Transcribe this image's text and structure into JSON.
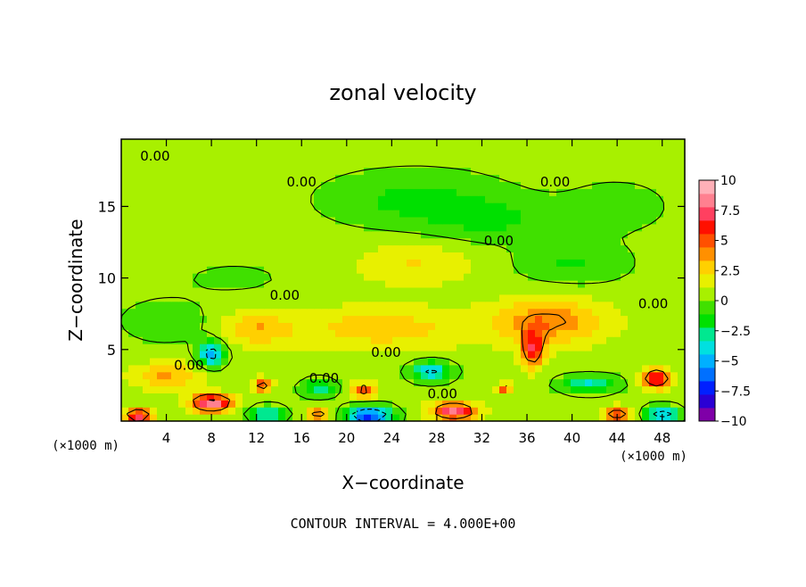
{
  "chart_data": {
    "type": "heatmap",
    "title": "zonal velocity",
    "xlabel": "X−coordinate",
    "ylabel": "Z−coordinate",
    "x_unit": "(×1000 m)",
    "xlim": [
      0,
      50
    ],
    "ylim": [
      0,
      19.7
    ],
    "x_ticks": [
      4,
      8,
      12,
      16,
      20,
      24,
      28,
      32,
      36,
      40,
      44,
      48
    ],
    "x_tick_labels": [
      "4",
      "8",
      "12",
      "16",
      "20",
      "24",
      "28",
      "32",
      "36",
      "40",
      "44",
      "48"
    ],
    "y_ticks": [
      5,
      10,
      15
    ],
    "y_tick_labels": [
      "5",
      "10",
      "15"
    ],
    "colorbar": {
      "min": -10,
      "max": 10,
      "ticks": [
        10,
        7.5,
        5,
        2.5,
        0,
        -2.5,
        -5,
        -7.5,
        -10
      ],
      "tick_labels": [
        "10",
        "7.5",
        "5",
        "2.5",
        "0",
        "−2.5",
        "−5",
        "−7.5",
        "−10"
      ],
      "colors": [
        "#7f00a8",
        "#2a00d4",
        "#0020ff",
        "#0070ff",
        "#00b0ff",
        "#00e0e0",
        "#00e890",
        "#00e000",
        "#40e000",
        "#a8f000",
        "#e8f000",
        "#ffd000",
        "#ff9000",
        "#ff5000",
        "#ff1000",
        "#ff4060",
        "#ff8090",
        "#ffb0b8"
      ]
    },
    "background_value": 0.5,
    "features": [
      {
        "x": 4,
        "z": 16,
        "sx": 6,
        "sz": 2.2,
        "value": 0.6
      },
      {
        "x": 26,
        "z": 15.5,
        "sx": 8,
        "sz": 2.0,
        "value": -1.9
      },
      {
        "x": 33,
        "z": 14,
        "sx": 6,
        "sz": 1.5,
        "value": -1.5
      },
      {
        "x": 40,
        "z": 11,
        "sx": 5,
        "sz": 1.5,
        "value": -1.7
      },
      {
        "x": 26,
        "z": 11,
        "sx": 5,
        "sz": 1.5,
        "value": 1.8
      },
      {
        "x": 44,
        "z": 15,
        "sx": 5,
        "sz": 2.0,
        "value": -1.0
      },
      {
        "x": 10,
        "z": 10,
        "sx": 5,
        "sz": 1.2,
        "value": -0.8
      },
      {
        "x": 4,
        "z": 7,
        "sx": 4,
        "sz": 1.5,
        "value": -1.4
      },
      {
        "x": 38,
        "z": 7,
        "sx": 5,
        "sz": 1.6,
        "value": 3.8
      },
      {
        "x": 23,
        "z": 6.5,
        "sx": 8,
        "sz": 1.5,
        "value": 2.4
      },
      {
        "x": 12,
        "z": 6.5,
        "sx": 3,
        "sz": 1.2,
        "value": 2.6
      },
      {
        "x": 8,
        "z": 4.7,
        "sx": 1.2,
        "sz": 0.9,
        "value": -5.6
      },
      {
        "x": 27.5,
        "z": 3.5,
        "sx": 1.8,
        "sz": 0.7,
        "value": -5.0
      },
      {
        "x": 17.5,
        "z": 2.3,
        "sx": 1.5,
        "sz": 0.6,
        "value": -3.5
      },
      {
        "x": 41.5,
        "z": 2.6,
        "sx": 2.5,
        "sz": 0.6,
        "value": -4.0
      },
      {
        "x": 4,
        "z": 3.2,
        "sx": 3,
        "sz": 0.9,
        "value": 3.0
      },
      {
        "x": 8,
        "z": 1.3,
        "sx": 1.8,
        "sz": 0.6,
        "value": 8.5
      },
      {
        "x": 29.5,
        "z": 0.7,
        "sx": 2.0,
        "sz": 0.6,
        "value": 7.5
      },
      {
        "x": 36.5,
        "z": 5.0,
        "sx": 1.0,
        "sz": 1.3,
        "value": 5.5
      },
      {
        "x": 47.5,
        "z": 3.0,
        "sx": 1.3,
        "sz": 0.7,
        "value": 6.5
      },
      {
        "x": 1.5,
        "z": 0.4,
        "sx": 1.2,
        "sz": 0.5,
        "value": 7.0
      },
      {
        "x": 22,
        "z": 0.4,
        "sx": 2.0,
        "sz": 0.6,
        "value": -8.0
      },
      {
        "x": 13,
        "z": 0.5,
        "sx": 1.5,
        "sz": 0.5,
        "value": -4.5
      },
      {
        "x": 48,
        "z": 0.5,
        "sx": 1.5,
        "sz": 0.5,
        "value": -6.0
      },
      {
        "x": 44,
        "z": 0.5,
        "sx": 1.2,
        "sz": 0.5,
        "value": 5.5
      },
      {
        "x": 12.5,
        "z": 2.5,
        "sx": 0.8,
        "sz": 0.5,
        "value": 5.0
      },
      {
        "x": 21.5,
        "z": 2.2,
        "sx": 1.0,
        "sz": 0.5,
        "value": 5.0
      },
      {
        "x": 17.5,
        "z": 0.5,
        "sx": 1.0,
        "sz": 0.4,
        "value": 5.0
      },
      {
        "x": 34,
        "z": 2.3,
        "sx": 0.7,
        "sz": 0.4,
        "value": 4.5
      }
    ],
    "contour_labels": [
      {
        "text": "0.00",
        "x": 3,
        "z": 18.5
      },
      {
        "text": "0.00",
        "x": 16,
        "z": 16.7
      },
      {
        "text": "0.00",
        "x": 38.5,
        "z": 16.7
      },
      {
        "text": "0.00",
        "x": 33.5,
        "z": 12.6
      },
      {
        "text": "0.00",
        "x": 14.5,
        "z": 8.8
      },
      {
        "text": "0.00",
        "x": 47.2,
        "z": 8.2
      },
      {
        "text": "0.00",
        "x": 23.5,
        "z": 4.8
      },
      {
        "text": "0.00",
        "x": 6,
        "z": 3.9
      },
      {
        "text": "0.00",
        "x": 18,
        "z": 3.0
      },
      {
        "text": "0.00",
        "x": 28.5,
        "z": 1.9
      }
    ],
    "grid": false,
    "legend": "colorbar right"
  },
  "footer": {
    "contour_interval": "CONTOUR INTERVAL = 4.000E+00"
  }
}
